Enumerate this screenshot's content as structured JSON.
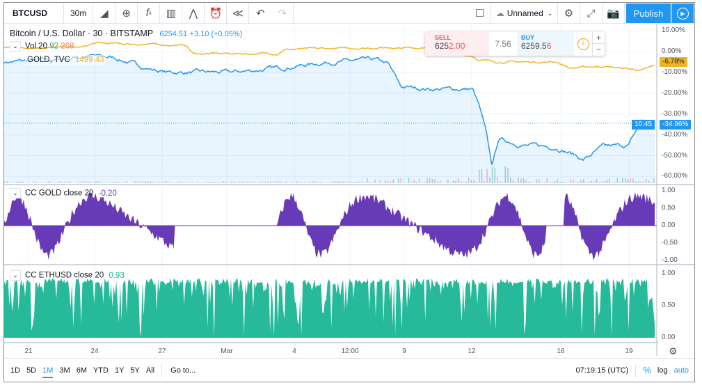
{
  "toolbar": {
    "symbol": "BTCUSD",
    "interval": "30m",
    "layout_name": "Unnamed",
    "publish": "Publish",
    "icons": [
      "bar-style-icon",
      "compare-icon",
      "indicators-icon",
      "templates-icon",
      "alert-icon",
      "replay-icon",
      "undo-icon",
      "redo-icon"
    ]
  },
  "legend": {
    "title": "Bitcoin / U.S. Dollar · 30 · BITSTAMP",
    "price": "6254.51",
    "change": "+3.10 (+0.05%)",
    "vol_label": "Vol 20",
    "vol_a": "92",
    "vol_b": "268",
    "compare_label": "GOLD, TVC",
    "compare_value": "1499.43"
  },
  "trade": {
    "sell_label": "SELL",
    "sell_price_a": "625",
    "sell_price_b": "2.00",
    "spread": "7.56",
    "buy_label": "BUY",
    "buy_price_a": "6259.5",
    "buy_price_b": "6"
  },
  "pane2": {
    "label": "CC GOLD close 20",
    "value": "-0.20"
  },
  "pane3": {
    "label": "CC ETHUSD close 20",
    "value": "0.93"
  },
  "price_axis": {
    "ticks": [
      "10.00%",
      "0.00%",
      "-10.00%",
      "-20.00%",
      "-30.00%",
      "-40.00%",
      "-50.00%",
      "-60.00%"
    ],
    "gold_tag": "-6.78%",
    "btc_tag": "-34.96%",
    "countdown": "10:45"
  },
  "pane2_axis": [
    "1.00",
    "0.50",
    "0.00",
    "-0.50",
    "-1.00"
  ],
  "pane3_axis": [
    "1.00",
    "0.50",
    "0.00"
  ],
  "time_axis": [
    "21",
    "24",
    "27",
    "Mar",
    "4",
    "12:00",
    "9",
    "12",
    "16",
    "19"
  ],
  "bottom": {
    "ranges": [
      "1D",
      "5D",
      "1M",
      "3M",
      "6M",
      "YTD",
      "1Y",
      "5Y",
      "All"
    ],
    "active_range": "1M",
    "goto": "Go to...",
    "clock": "07:19:15 (UTC)",
    "percent": "%",
    "log": "log",
    "auto": "auto"
  },
  "colors": {
    "btc": "#2196f3",
    "gold": "#f0b429",
    "cc_gold": "#673ab7",
    "cc_eth": "#26b99a",
    "accent": "#2196f3"
  },
  "chart_data": {
    "type": "line",
    "y_unit": "%",
    "ylim": [
      -63,
      12
    ],
    "series": [
      {
        "knots": [
          [
            0,
            -5
          ],
          [
            8,
            -4
          ],
          [
            13,
            -2
          ],
          [
            17,
            -3
          ],
          [
            22,
            -8
          ],
          [
            25,
            -10
          ],
          [
            35,
            -10
          ],
          [
            42,
            -8
          ],
          [
            50,
            -5
          ],
          [
            57,
            -4
          ],
          [
            59,
            -6
          ],
          [
            61,
            -17
          ],
          [
            66,
            -18
          ],
          [
            72,
            -18
          ],
          [
            73,
            -26
          ],
          [
            74,
            -38
          ],
          [
            75,
            -55
          ],
          [
            76,
            -42
          ],
          [
            80,
            -45
          ],
          [
            85,
            -46
          ],
          [
            88,
            -50
          ],
          [
            89,
            -52
          ],
          [
            92,
            -46
          ],
          [
            96,
            -45
          ],
          [
            98,
            -33
          ],
          [
            100,
            -35
          ]
        ]
      },
      {
        "knots": [
          [
            0,
            2
          ],
          [
            12,
            2
          ],
          [
            14,
            4
          ],
          [
            28,
            3
          ],
          [
            29,
            -1
          ],
          [
            42,
            -1
          ],
          [
            43,
            1
          ],
          [
            60,
            2
          ],
          [
            65,
            2
          ],
          [
            66,
            -1
          ],
          [
            72,
            -2
          ],
          [
            73,
            -4
          ],
          [
            76,
            -5
          ],
          [
            85,
            -5
          ],
          [
            87,
            -8
          ],
          [
            92,
            -7
          ],
          [
            98,
            -9
          ],
          [
            100,
            -7
          ]
        ]
      }
    ]
  }
}
